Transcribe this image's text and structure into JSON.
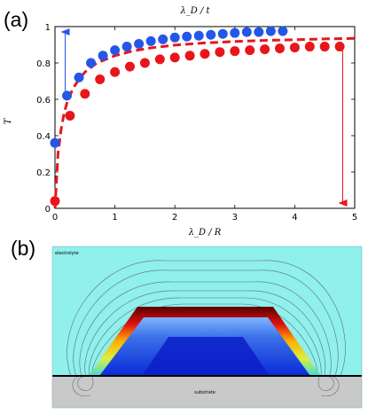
{
  "figure": {
    "panel_a_label": "(a)",
    "panel_b_label": "(b)"
  },
  "chart_data": {
    "type": "scatter",
    "title": "",
    "top_axis_label": "λ_D / t",
    "xlabel": "λ_D / R",
    "ylabel": "T",
    "xlim": [
      0,
      5
    ],
    "ylim": [
      0,
      1
    ],
    "x_ticks": [
      "0",
      "1",
      "2",
      "3",
      "4",
      "5"
    ],
    "y_ticks": [
      "0",
      "0.2",
      "0.4",
      "0.6",
      "0.8",
      "1"
    ],
    "grid": false,
    "legend": "none",
    "series": [
      {
        "color": "#2457e8",
        "marker": "circle",
        "x": [
          0.0,
          0.2,
          0.4,
          0.6,
          0.8,
          1.0,
          1.2,
          1.4,
          1.6,
          1.8,
          2.0,
          2.2,
          2.4,
          2.6,
          2.8,
          3.0,
          3.2,
          3.4,
          3.6,
          3.8
        ],
        "y": [
          0.36,
          0.62,
          0.72,
          0.8,
          0.84,
          0.87,
          0.89,
          0.905,
          0.92,
          0.93,
          0.94,
          0.945,
          0.95,
          0.955,
          0.96,
          0.965,
          0.97,
          0.97,
          0.975,
          0.975
        ]
      },
      {
        "color": "#e8161b",
        "marker": "circle",
        "x": [
          0.0,
          0.25,
          0.5,
          0.75,
          1.0,
          1.25,
          1.5,
          1.75,
          2.0,
          2.25,
          2.5,
          2.75,
          3.0,
          3.25,
          3.5,
          3.75,
          4.0,
          4.25,
          4.5,
          4.75
        ],
        "y": [
          0.04,
          0.51,
          0.63,
          0.71,
          0.75,
          0.78,
          0.8,
          0.82,
          0.83,
          0.84,
          0.85,
          0.86,
          0.865,
          0.87,
          0.875,
          0.88,
          0.885,
          0.89,
          0.89,
          0.89
        ]
      },
      {
        "color": "#e8161b",
        "style": "dashed-line",
        "x": [
          0.0,
          0.05,
          0.1,
          0.15,
          0.2,
          0.3,
          0.4,
          0.5,
          0.7,
          1.0,
          1.3,
          1.6,
          2.0,
          2.5,
          3.0,
          3.5,
          4.0,
          4.5,
          5.0
        ],
        "y": [
          0.0,
          0.3,
          0.43,
          0.52,
          0.58,
          0.66,
          0.71,
          0.75,
          0.8,
          0.84,
          0.866,
          0.883,
          0.898,
          0.91,
          0.918,
          0.924,
          0.928,
          0.932,
          0.935
        ]
      }
    ],
    "annotations": [
      {
        "type": "arrow",
        "color": "#2457e8",
        "direction": "up",
        "x": 0.17,
        "y_from": 0.62,
        "y_to": 1.0
      },
      {
        "type": "arrow",
        "color": "#e8161b",
        "direction": "down",
        "x": 4.8,
        "y_from": 0.89,
        "y_to": 0.0
      }
    ]
  },
  "simulation": {
    "electrolyte_label": "electrolyte",
    "substrate_label": "substrate",
    "colors": {
      "electrolyte": "#8ff0ec",
      "substrate": "#c9c9c9",
      "interface_line": "#000000"
    }
  }
}
